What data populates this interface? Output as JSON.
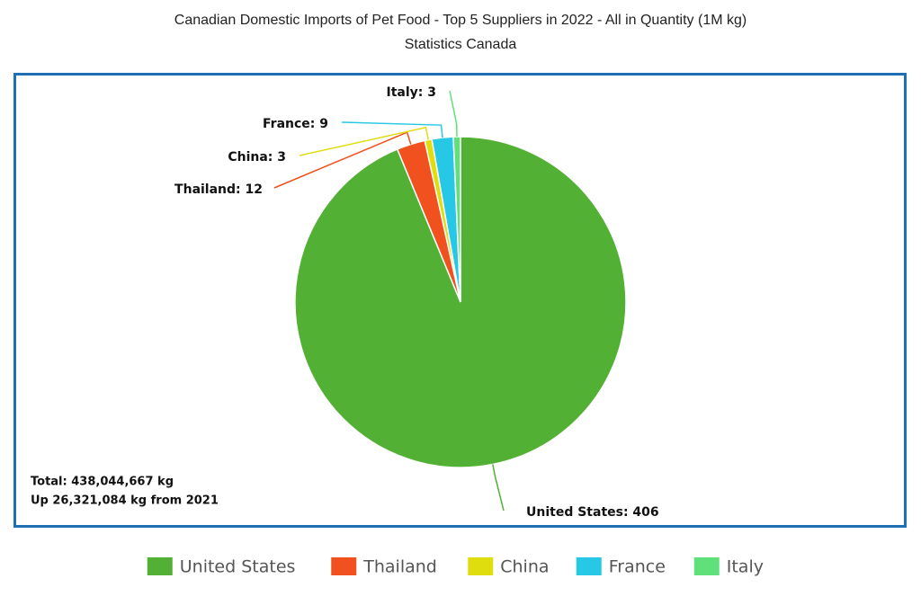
{
  "chart_data": {
    "type": "pie",
    "title": "Canadian Domestic Imports of Pet Food - Top 5 Suppliers in 2022 - All in Quantity (1M kg)",
    "subtitle": "Statistics Canada",
    "categories": [
      "United States",
      "Thailand",
      "China",
      "France",
      "Italy"
    ],
    "values": [
      406,
      12,
      3,
      9,
      3
    ],
    "value_labels": [
      "United States: 406",
      "Thailand: 12",
      "China: 3",
      "France: 9",
      "Italy: 3"
    ],
    "colors": [
      "#52b135",
      "#f0511e",
      "#e0dd0f",
      "#27c8e6",
      "#5fe07a"
    ],
    "annotations": [
      "Total:  438,044,667 kg",
      "Up 26,321,084 kg from 2021"
    ]
  }
}
